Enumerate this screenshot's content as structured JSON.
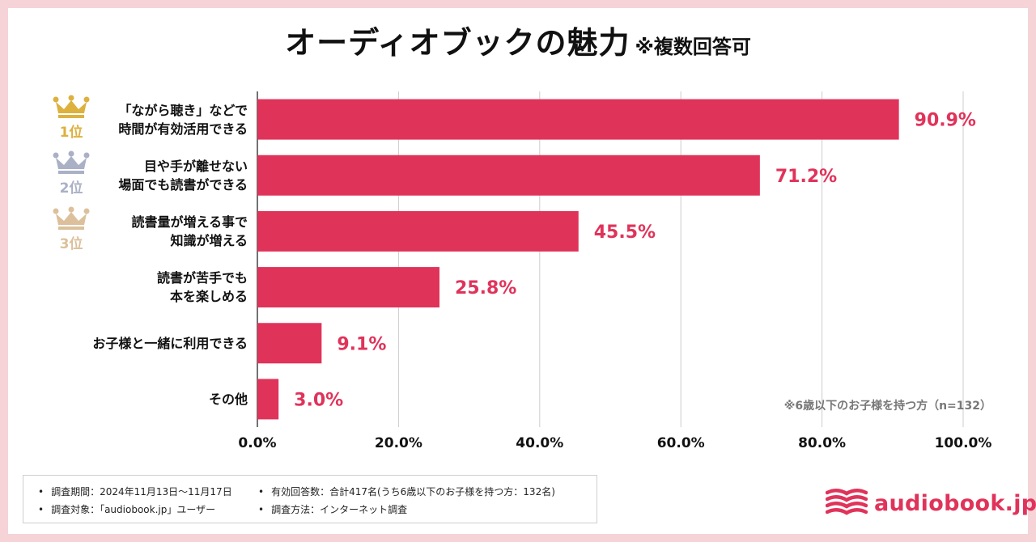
{
  "title": {
    "main": "オーディオブックの魅力",
    "sub": "※複数回答可"
  },
  "chart_data": {
    "type": "bar",
    "orientation": "horizontal",
    "categories": [
      [
        "「ながら聴き」などで",
        "時間が有効活用できる"
      ],
      [
        "目や手が離せない",
        "場面でも読書ができる"
      ],
      [
        "読書量が増える事で",
        "知識が増える"
      ],
      [
        "読書が苦手でも",
        "本を楽しめる"
      ],
      [
        "お子様と一緒に利用できる"
      ],
      [
        "その他"
      ]
    ],
    "values": [
      90.9,
      71.2,
      45.5,
      25.8,
      9.1,
      3.0
    ],
    "value_labels": [
      "90.9%",
      "71.2%",
      "45.5%",
      "25.8%",
      "9.1%",
      "3.0%"
    ],
    "xlim": [
      0,
      100
    ],
    "xticks": [
      0,
      20,
      40,
      60,
      80,
      100
    ],
    "xtick_labels": [
      "0.0%",
      "20.0%",
      "40.0%",
      "60.0%",
      "80.0%",
      "100.0%"
    ],
    "grid": true,
    "bar_color": "#e0335a",
    "label_color": "#e0335a",
    "note": "※6歳以下のお子様を持つ方（n=132）"
  },
  "ranks": [
    {
      "label": "1位",
      "color": "#dcb13e"
    },
    {
      "label": "2位",
      "color": "#aab0c6"
    },
    {
      "label": "3位",
      "color": "#dcc09b"
    }
  ],
  "footer": {
    "period": "調査期間：2024年11月13日〜11月17日",
    "respondents": "有効回答数：合計417名(うち6歳以下のお子様を持つ方：132名)",
    "target": "調査対象：「audiobook.jp」ユーザー",
    "method": "調査方法：インターネット調査"
  },
  "logo": {
    "text": "audiobook.jp",
    "color": "#e0335a"
  }
}
